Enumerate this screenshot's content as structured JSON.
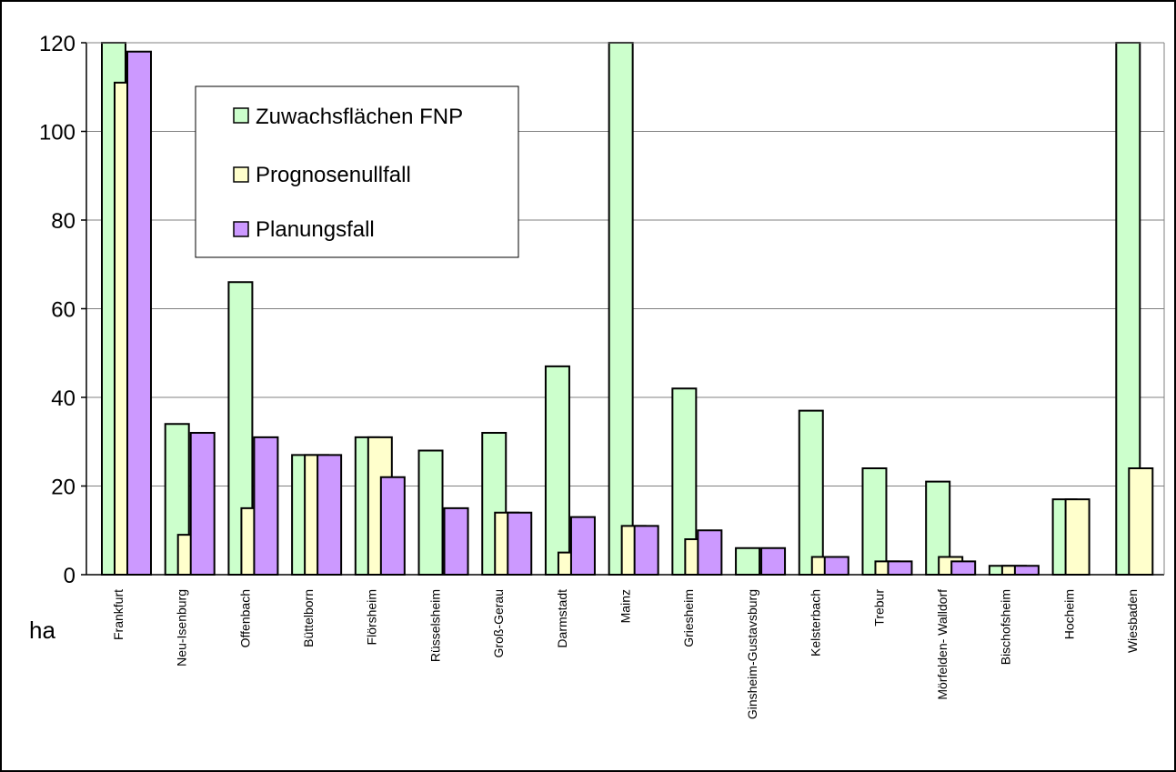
{
  "chart_data": {
    "type": "bar",
    "categories": [
      "Frankfurt",
      "Neu-Isenburg",
      "Offenbach",
      "Büttelborn",
      "Flörsheim",
      "Rüsselsheim",
      "Groß-Gerau",
      "Darmstadt",
      "Mainz",
      "Griesheim",
      "Ginsheim-Gustavsburg",
      "Kelsterbach",
      "Trebur",
      "Mörfelden- Walldorf",
      "Bischofsheim",
      "Hocheim",
      "Wiesbaden"
    ],
    "series": [
      {
        "name": "Zuwachsflächen FNP",
        "color": "#ccffcc",
        "values": [
          125,
          34,
          66,
          27,
          31,
          28,
          32,
          47,
          125,
          42,
          6,
          37,
          24,
          21,
          2,
          17,
          125
        ]
      },
      {
        "name": "Prognosenullfall",
        "color": "#ffffcc",
        "values": [
          111,
          9,
          15,
          27,
          31,
          null,
          14,
          5,
          11,
          8,
          null,
          4,
          3,
          4,
          2,
          17,
          24
        ]
      },
      {
        "name": "Planungsfall",
        "color": "#cc99ff",
        "values": [
          118,
          32,
          31,
          27,
          22,
          15,
          14,
          13,
          11,
          10,
          6,
          4,
          3,
          3,
          2,
          null,
          null
        ]
      }
    ],
    "ylim": [
      0,
      120
    ],
    "yticks": [
      "0",
      "20",
      "40",
      "60",
      "80",
      "100",
      "120"
    ],
    "unit_label": "ha",
    "grid": true,
    "legend_position": "top-left"
  }
}
